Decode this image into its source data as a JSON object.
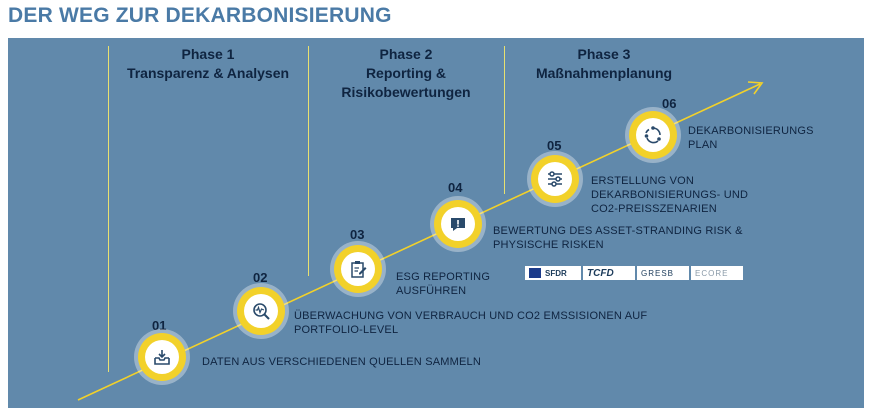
{
  "title": "DER WEG ZUR DEKARBONISIERUNG",
  "phases": [
    {
      "number": "Phase 1",
      "name": "Transparenz & Analysen"
    },
    {
      "number": "Phase 2",
      "name": "Reporting & Risikobewertungen"
    },
    {
      "number": "Phase 3",
      "name": "Maßnahmenplanung"
    }
  ],
  "steps": [
    {
      "num": "01",
      "label": "DATEN AUS VERSCHIEDENEN QUELLEN SAMMELN",
      "icon": "inbox-download-icon"
    },
    {
      "num": "02",
      "label": "ÜBERWACHUNG VON VERBRAUCH UND CO2 EMSSISIONEN AUF PORTFOLIO-LEVEL",
      "icon": "magnifier-pulse-icon"
    },
    {
      "num": "03",
      "label": "ESG REPORTING AUSFÜHREN",
      "icon": "clipboard-edit-icon"
    },
    {
      "num": "04",
      "label": "BEWERTUNG DES ASSET-STRANDING RISK & PHYSISCHE RISKEN",
      "icon": "alert-message-icon"
    },
    {
      "num": "05",
      "label": "ERSTELLUNG VON DEKARBONISIERUNGS- UND CO2-PREISSZENARIEN",
      "icon": "sliders-icon"
    },
    {
      "num": "06",
      "label": "DEKARBONISIERUNGS PLAN",
      "icon": "cycle-icon"
    }
  ],
  "logos": [
    "SFDR",
    "TCFD",
    "GRESB",
    "ECORE"
  ],
  "colors": {
    "panel": "#6189ab",
    "accent": "#f2d12a",
    "title": "#4a7aa6",
    "text": "#0f2440"
  }
}
